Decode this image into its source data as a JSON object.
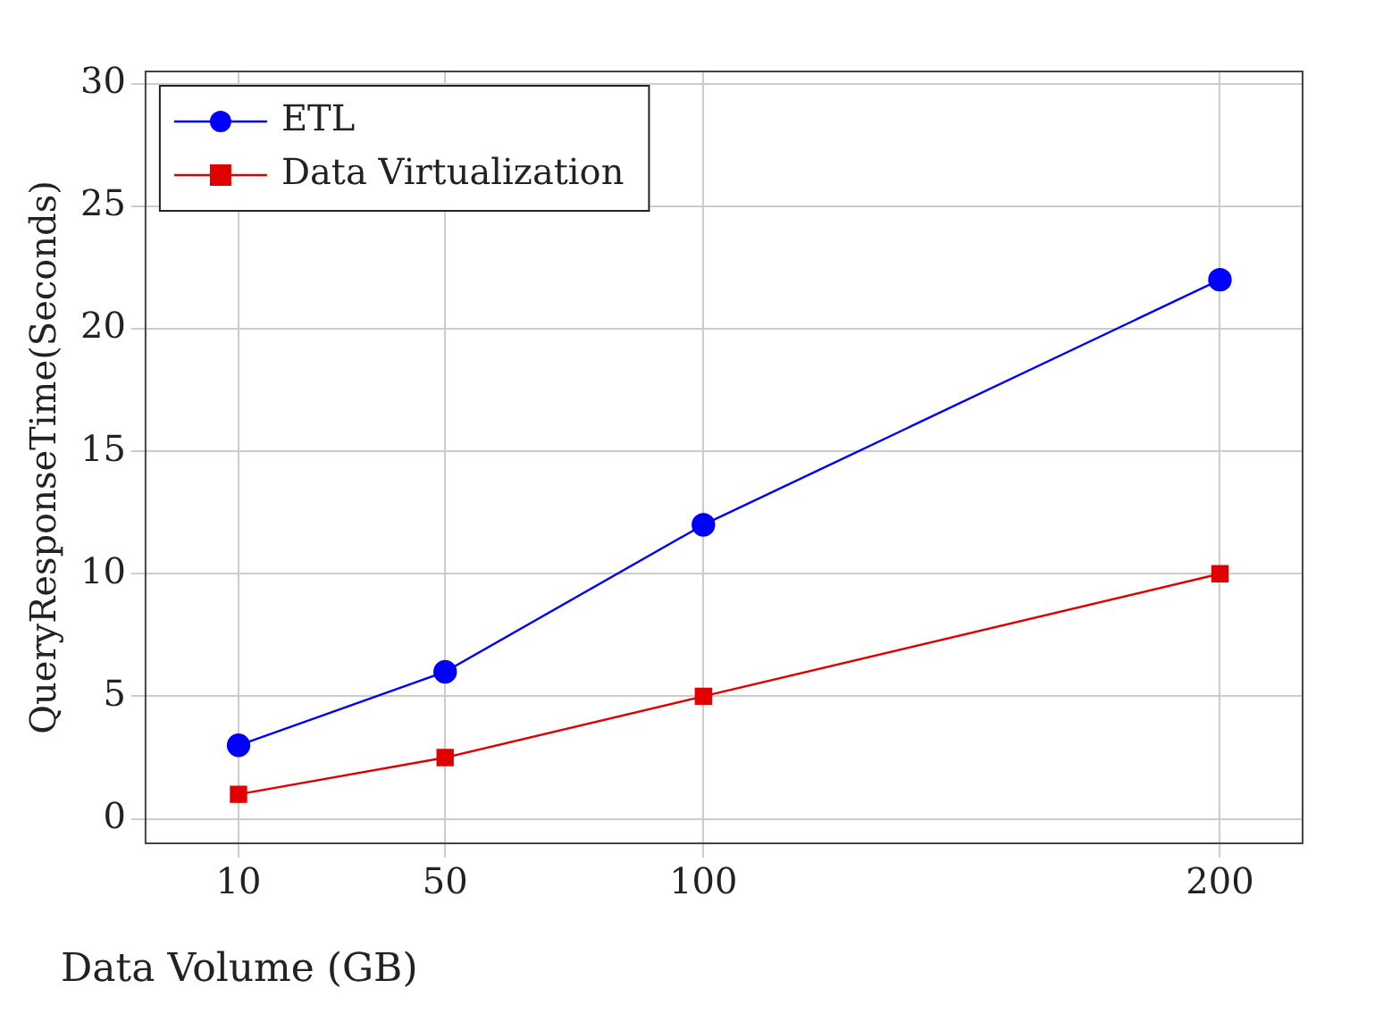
{
  "chart_data": {
    "type": "line",
    "xlabel": "Data Volume (GB)",
    "ylabel": "QueryResponseTime(Seconds)",
    "x": [
      10,
      50,
      100,
      200
    ],
    "series": [
      {
        "name": "ETL",
        "color": "#0000ff",
        "values": [
          3,
          6,
          12,
          22
        ],
        "marker": "circle"
      },
      {
        "name": "Data Virtualization",
        "color": "#e00000",
        "values": [
          1,
          2.5,
          5,
          10
        ],
        "marker": "square"
      }
    ],
    "xlim": [
      -8,
      216
    ],
    "xticks": [
      10,
      50,
      100,
      200
    ],
    "ylim": [
      -1,
      30.5
    ],
    "yticks": [
      0,
      5,
      10,
      15,
      20,
      25,
      30
    ],
    "grid": true,
    "legend": "top left",
    "line_style": "solid"
  }
}
